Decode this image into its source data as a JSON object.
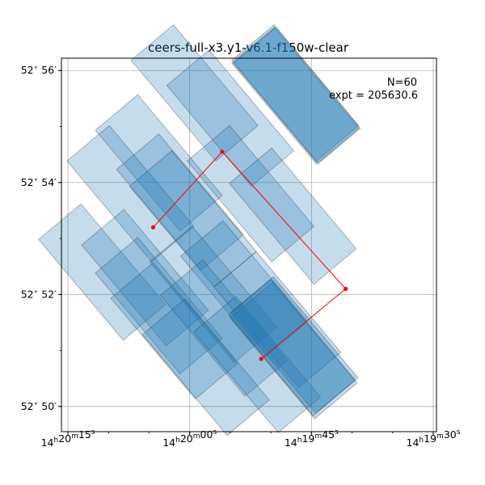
{
  "chart_data": {
    "type": "scatter",
    "title": "ceers-full-x3.y1-v6.1-f150w-clear",
    "xlabel": "",
    "ylabel": "",
    "x_axis": {
      "unit": "RA (hours)",
      "ticks": [
        {
          "label_h": "14",
          "label_m": "20",
          "label_s": "15",
          "ra_sec": 15
        },
        {
          "label_h": "14",
          "label_m": "20",
          "label_s": "00",
          "ra_sec": 0
        },
        {
          "label_h": "14",
          "label_m": "19",
          "label_s": "45",
          "ra_sec": -15
        },
        {
          "label_h": "14",
          "label_m": "19",
          "label_s": "30",
          "ra_sec": -30
        }
      ],
      "range_sec": [
        15.8,
        -30.4
      ]
    },
    "y_axis": {
      "unit": "Dec (arcmin above 52°50')",
      "ticks": [
        {
          "label_d": "52",
          "label_m": "56",
          "dec_min": 6
        },
        {
          "label_d": "52",
          "label_m": "54",
          "dec_min": 4
        },
        {
          "label_d": "52",
          "label_m": "52",
          "dec_min": 2
        },
        {
          "label_d": "52",
          "label_m": "50",
          "dec_min": 0
        }
      ],
      "range_min": [
        -0.45,
        6.22
      ]
    },
    "grid": true,
    "annotations": {
      "n_label": "N=60",
      "expt_label": "expt = 205630.6"
    },
    "footprint_color": "#1f77b4",
    "path_color": "#ff0000",
    "footprints": [
      {
        "center": [
          3.8,
          4.35
        ],
        "size": [
          6.8,
          2.35
        ],
        "angle": 40,
        "depth": 1
      },
      {
        "center": [
          7.3,
          3.8
        ],
        "size": [
          6.8,
          2.35
        ],
        "angle": 40,
        "depth": 1
      },
      {
        "center": [
          1.2,
          3.65
        ],
        "size": [
          6.8,
          2.35
        ],
        "angle": 40,
        "depth": 1
      },
      {
        "center": [
          -0.6,
          5.6
        ],
        "size": [
          6.8,
          2.35
        ],
        "angle": 40,
        "depth": 1
      },
      {
        "center": [
          -0.4,
          3.35
        ],
        "size": [
          6.8,
          2.35
        ],
        "angle": 40,
        "depth": 1
      },
      {
        "center": [
          -5.0,
          5.15
        ],
        "size": [
          6.8,
          2.35
        ],
        "angle": 40,
        "depth": 1
      },
      {
        "center": [
          -7.5,
          3.8
        ],
        "size": [
          6.8,
          2.35
        ],
        "angle": 40,
        "depth": 1
      },
      {
        "center": [
          -12.7,
          3.4
        ],
        "size": [
          6.8,
          2.35
        ],
        "angle": 40,
        "depth": 1
      },
      {
        "center": [
          10.8,
          2.4
        ],
        "size": [
          6.8,
          2.35
        ],
        "angle": 40,
        "depth": 1
      },
      {
        "center": [
          5.5,
          2.3
        ],
        "size": [
          6.8,
          2.35
        ],
        "angle": 40,
        "depth": 1
      },
      {
        "center": [
          3.8,
          1.8
        ],
        "size": [
          6.8,
          2.35
        ],
        "angle": 40,
        "depth": 1
      },
      {
        "center": [
          -2.9,
          2.0
        ],
        "size": [
          6.8,
          2.35
        ],
        "angle": 40,
        "depth": 1
      },
      {
        "center": [
          -6.7,
          2.1
        ],
        "size": [
          6.8,
          2.35
        ],
        "angle": 40,
        "depth": 1
      },
      {
        "center": [
          1.9,
          1.35
        ],
        "size": [
          6.8,
          2.35
        ],
        "angle": 40,
        "depth": 1
      },
      {
        "center": [
          -4.2,
          1.4
        ],
        "size": [
          6.8,
          2.35
        ],
        "angle": 40,
        "depth": 1
      },
      {
        "center": [
          -10.8,
          1.55
        ],
        "size": [
          6.8,
          2.35
        ],
        "angle": 40,
        "depth": 1
      },
      {
        "center": [
          -2.0,
          0.7
        ],
        "size": [
          6.8,
          2.35
        ],
        "angle": 40,
        "depth": 1
      },
      {
        "center": [
          -8.3,
          0.75
        ],
        "size": [
          6.8,
          2.35
        ],
        "angle": 40,
        "depth": 1
      },
      {
        "center": [
          -13.0,
          5.55
        ],
        "size": [
          6.8,
          2.35
        ],
        "angle": 40,
        "depth": 1
      },
      {
        "center": [
          -12.8,
          1.0
        ],
        "size": [
          6.8,
          2.35
        ],
        "angle": 40,
        "depth": 1
      }
    ],
    "dark_footprints": [
      {
        "center": [
          -13.0,
          5.6
        ],
        "size": [
          6.8,
          2.35
        ],
        "angle": 40
      },
      {
        "center": [
          -13.2,
          5.55
        ],
        "size": [
          6.8,
          2.35
        ],
        "angle": 40
      },
      {
        "center": [
          -12.9,
          1.1
        ],
        "size": [
          6.8,
          2.35
        ],
        "angle": 40
      },
      {
        "center": [
          -12.6,
          1.05
        ],
        "size": [
          6.8,
          2.35
        ],
        "angle": 40
      }
    ],
    "path": [
      {
        "ra_sec": 4.5,
        "dec_min": 3.2
      },
      {
        "ra_sec": -4.0,
        "dec_min": 4.55
      },
      {
        "ra_sec": -19.2,
        "dec_min": 2.1
      },
      {
        "ra_sec": -8.8,
        "dec_min": 0.85
      }
    ]
  }
}
